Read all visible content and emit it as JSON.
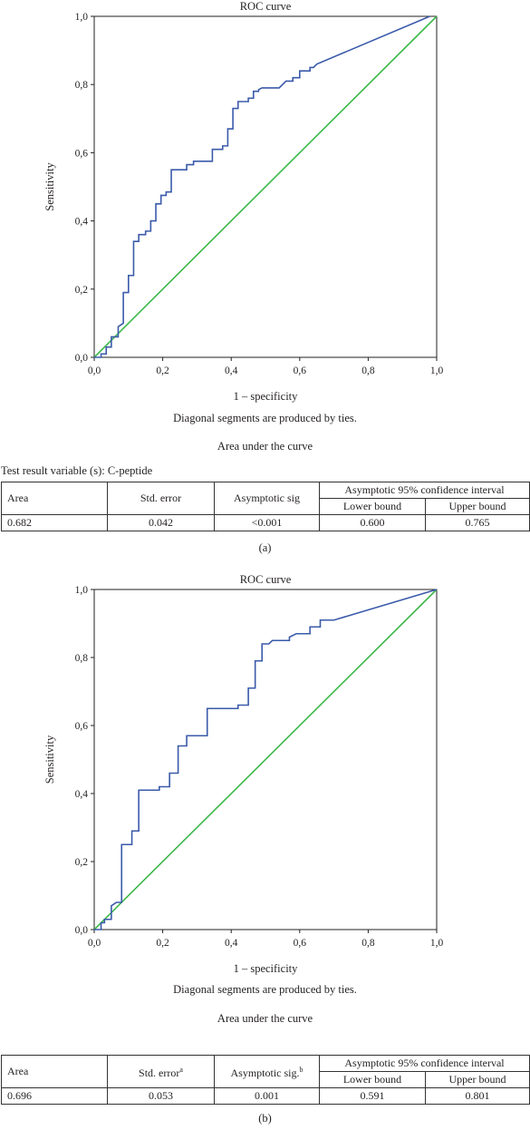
{
  "panels": [
    {
      "chart_data": {
        "type": "line",
        "title": "ROC curve",
        "xlabel": "1 – specificity",
        "ylabel": "Sensitivity",
        "xlim": [
          0,
          1
        ],
        "ylim": [
          0,
          1
        ],
        "x_ticks": [
          "0,0",
          "0,2",
          "0,4",
          "0,6",
          "0,8",
          "1,0"
        ],
        "y_ticks": [
          "0,0",
          "0,2",
          "0,4",
          "0,6",
          "0,8",
          "1,0"
        ],
        "grid": false,
        "series": [
          {
            "color": "#3a5aaa",
            "points": [
              [
                0,
                0
              ],
              [
                0.02,
                0
              ],
              [
                0.02,
                0.01
              ],
              [
                0.035,
                0.01
              ],
              [
                0.035,
                0.03
              ],
              [
                0.05,
                0.03
              ],
              [
                0.05,
                0.06
              ],
              [
                0.07,
                0.06
              ],
              [
                0.07,
                0.09
              ],
              [
                0.085,
                0.1
              ],
              [
                0.085,
                0.19
              ],
              [
                0.1,
                0.19
              ],
              [
                0.1,
                0.24
              ],
              [
                0.115,
                0.24
              ],
              [
                0.115,
                0.34
              ],
              [
                0.13,
                0.34
              ],
              [
                0.13,
                0.36
              ],
              [
                0.15,
                0.36
              ],
              [
                0.15,
                0.37
              ],
              [
                0.165,
                0.37
              ],
              [
                0.165,
                0.4
              ],
              [
                0.18,
                0.4
              ],
              [
                0.18,
                0.45
              ],
              [
                0.195,
                0.45
              ],
              [
                0.195,
                0.475
              ],
              [
                0.21,
                0.475
              ],
              [
                0.21,
                0.485
              ],
              [
                0.225,
                0.485
              ],
              [
                0.225,
                0.55
              ],
              [
                0.27,
                0.55
              ],
              [
                0.27,
                0.565
              ],
              [
                0.29,
                0.565
              ],
              [
                0.29,
                0.575
              ],
              [
                0.345,
                0.575
              ],
              [
                0.345,
                0.61
              ],
              [
                0.375,
                0.61
              ],
              [
                0.375,
                0.62
              ],
              [
                0.39,
                0.62
              ],
              [
                0.39,
                0.67
              ],
              [
                0.405,
                0.67
              ],
              [
                0.405,
                0.73
              ],
              [
                0.42,
                0.73
              ],
              [
                0.42,
                0.75
              ],
              [
                0.45,
                0.75
              ],
              [
                0.45,
                0.76
              ],
              [
                0.465,
                0.76
              ],
              [
                0.465,
                0.78
              ],
              [
                0.48,
                0.78
              ],
              [
                0.48,
                0.785
              ],
              [
                0.49,
                0.79
              ],
              [
                0.54,
                0.79
              ],
              [
                0.56,
                0.81
              ],
              [
                0.58,
                0.81
              ],
              [
                0.58,
                0.82
              ],
              [
                0.6,
                0.82
              ],
              [
                0.6,
                0.84
              ],
              [
                0.63,
                0.84
              ],
              [
                0.63,
                0.85
              ],
              [
                0.64,
                0.85
              ],
              [
                0.65,
                0.86
              ],
              [
                0.98,
                1.0
              ]
            ]
          },
          {
            "color": "#3cb84a",
            "points": [
              [
                0,
                0
              ],
              [
                1,
                1
              ]
            ]
          }
        ]
      },
      "note": "Diagonal segments are produced by ties.",
      "table_title": "Area under the curve",
      "test_variable": "Test result variable (s): C-peptide",
      "table": {
        "headers": [
          "Area",
          "Std. error",
          "Asymptotic sig",
          "Asymptotic 95% confidence interval"
        ],
        "subheaders": [
          "Lower bound",
          "Upper bound"
        ],
        "row": [
          "0.682",
          "0.042",
          "<0.001",
          "0.600",
          "0.765"
        ]
      },
      "label": "(a)"
    },
    {
      "chart_data": {
        "type": "line",
        "title": "ROC curve",
        "xlabel": "1 – specificity",
        "ylabel": "Sensitivity",
        "xlim": [
          0,
          1
        ],
        "ylim": [
          0,
          1
        ],
        "x_ticks": [
          "0,0",
          "0,2",
          "0,4",
          "0,6",
          "0,8",
          "1,0"
        ],
        "y_ticks": [
          "0,0",
          "0,2",
          "0,4",
          "0,6",
          "0,8",
          "1,0"
        ],
        "grid": false,
        "series": [
          {
            "color": "#3a5aaa",
            "points": [
              [
                0,
                0
              ],
              [
                0.02,
                0
              ],
              [
                0.02,
                0.02
              ],
              [
                0.03,
                0.02
              ],
              [
                0.03,
                0.03
              ],
              [
                0.05,
                0.03
              ],
              [
                0.05,
                0.07
              ],
              [
                0.065,
                0.08
              ],
              [
                0.08,
                0.08
              ],
              [
                0.08,
                0.25
              ],
              [
                0.11,
                0.25
              ],
              [
                0.11,
                0.29
              ],
              [
                0.13,
                0.29
              ],
              [
                0.13,
                0.41
              ],
              [
                0.19,
                0.41
              ],
              [
                0.19,
                0.42
              ],
              [
                0.22,
                0.42
              ],
              [
                0.22,
                0.46
              ],
              [
                0.245,
                0.46
              ],
              [
                0.245,
                0.54
              ],
              [
                0.27,
                0.54
              ],
              [
                0.27,
                0.57
              ],
              [
                0.33,
                0.57
              ],
              [
                0.33,
                0.65
              ],
              [
                0.42,
                0.65
              ],
              [
                0.42,
                0.66
              ],
              [
                0.45,
                0.66
              ],
              [
                0.45,
                0.71
              ],
              [
                0.47,
                0.71
              ],
              [
                0.47,
                0.79
              ],
              [
                0.49,
                0.79
              ],
              [
                0.49,
                0.84
              ],
              [
                0.51,
                0.84
              ],
              [
                0.52,
                0.85
              ],
              [
                0.57,
                0.85
              ],
              [
                0.57,
                0.86
              ],
              [
                0.59,
                0.87
              ],
              [
                0.63,
                0.87
              ],
              [
                0.63,
                0.89
              ],
              [
                0.66,
                0.89
              ],
              [
                0.66,
                0.91
              ],
              [
                0.7,
                0.91
              ],
              [
                1.0,
                1.0
              ]
            ]
          },
          {
            "color": "#3cb84a",
            "points": [
              [
                0,
                0
              ],
              [
                1,
                1
              ]
            ]
          }
        ]
      },
      "note": "Diagonal segments are produced by ties.",
      "table_title": "Area under the curve",
      "test_variable": "",
      "table": {
        "headers": [
          "Area",
          "Std. error",
          "Asymptotic sig.",
          "Asymptotic 95% confidence interval"
        ],
        "header_sups": [
          "",
          "a",
          "b",
          ""
        ],
        "subheaders": [
          "Lower bound",
          "Upper bound"
        ],
        "row": [
          "0.696",
          "0.053",
          "0.001",
          "0.591",
          "0.801"
        ]
      },
      "label": "(b)"
    }
  ]
}
